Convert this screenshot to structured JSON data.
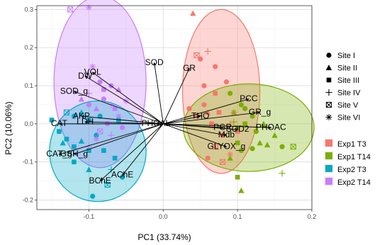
{
  "chart_data": {
    "type": "scatter",
    "title": "",
    "xlabel": "PC1 (33.74%)",
    "ylabel": "PC2 (10.06%)",
    "xlim": [
      -0.17,
      0.2
    ],
    "ylim": [
      -0.225,
      0.31
    ],
    "x_ticks": [
      -0.1,
      0.0,
      0.1,
      0.2
    ],
    "x_tick_labels": [
      "-0.1",
      "0.0",
      "0.1",
      "0.2"
    ],
    "y_ticks": [
      -0.2,
      -0.1,
      0.0,
      0.1,
      0.2,
      0.3
    ],
    "y_tick_labels": [
      "-0.2",
      "-0.1",
      "0.0",
      "0.1",
      "0.2",
      "0.3"
    ],
    "grid": true,
    "legend_position": "right",
    "shape_legend": [
      {
        "label": "Site I",
        "shape": "circle"
      },
      {
        "label": "Site II",
        "shape": "triangle"
      },
      {
        "label": "Site III",
        "shape": "square"
      },
      {
        "label": "Site IV",
        "shape": "plus"
      },
      {
        "label": "Site V",
        "shape": "boxx"
      },
      {
        "label": "Site VI",
        "shape": "star"
      }
    ],
    "color_legend": [
      {
        "label": "Exp1 T3",
        "color": "#F8766D"
      },
      {
        "label": "Exp1 T14",
        "color": "#7CAE00"
      },
      {
        "label": "Exp2 T3",
        "color": "#00A9C5"
      },
      {
        "label": "Exp2 T14",
        "color": "#C77CFF"
      }
    ],
    "ellipses": [
      {
        "group": "Exp2 T14",
        "cx": -0.085,
        "cy": 0.11,
        "rx": 0.062,
        "ry": 0.225,
        "angle_deg": 0
      },
      {
        "group": "Exp2 T3",
        "cx": -0.088,
        "cy": -0.072,
        "rx": 0.065,
        "ry": 0.132,
        "angle_deg": 0
      },
      {
        "group": "Exp1 T3",
        "cx": 0.078,
        "cy": 0.085,
        "rx": 0.052,
        "ry": 0.215,
        "angle_deg": 0
      },
      {
        "group": "Exp1 T14",
        "cx": 0.115,
        "cy": -0.01,
        "rx": 0.088,
        "ry": 0.115,
        "angle_deg": 0
      }
    ],
    "loadings": [
      {
        "label": "SOD",
        "x": -0.012,
        "y": 0.16
      },
      {
        "label": "GR",
        "x": 0.035,
        "y": 0.145
      },
      {
        "label": "VOL",
        "x": -0.095,
        "y": 0.135
      },
      {
        "label": "DW",
        "x": -0.105,
        "y": 0.125
      },
      {
        "label": "SOD_g",
        "x": -0.12,
        "y": 0.085
      },
      {
        "label": "CAT",
        "x": -0.14,
        "y": 0.0
      },
      {
        "label": "AKP",
        "x": -0.11,
        "y": 0.02
      },
      {
        "label": "LDH",
        "x": -0.105,
        "y": 0.005
      },
      {
        "label": "CAT_g",
        "x": -0.14,
        "y": -0.08
      },
      {
        "label": "GSH_g",
        "x": -0.12,
        "y": -0.08
      },
      {
        "label": "AChE",
        "x": -0.055,
        "y": -0.135
      },
      {
        "label": "BChE",
        "x": -0.085,
        "y": -0.15
      },
      {
        "label": "PHOAL",
        "x": -0.01,
        "y": 0.0
      },
      {
        "label": "THO",
        "x": 0.05,
        "y": 0.02
      },
      {
        "label": "PCC",
        "x": 0.115,
        "y": 0.065
      },
      {
        "label": "GR_g",
        "x": 0.13,
        "y": 0.03
      },
      {
        "label": "PHOAC",
        "x": 0.145,
        "y": -0.01
      },
      {
        "label": "PGR",
        "x": 0.08,
        "y": -0.01
      },
      {
        "label": "SOD2",
        "x": 0.1,
        "y": -0.015
      },
      {
        "label": "Mdb",
        "x": 0.085,
        "y": -0.03
      },
      {
        "label": "GLYOX_g",
        "x": 0.085,
        "y": -0.06
      }
    ],
    "series": [
      {
        "name": "Exp1 T3",
        "points": [
          [
            0.04,
            0.29,
            "triangle"
          ],
          [
            0.06,
            0.19,
            "plus"
          ],
          [
            0.045,
            0.18,
            "boxx"
          ],
          [
            0.05,
            0.17,
            "circle"
          ],
          [
            0.07,
            0.15,
            "circle"
          ],
          [
            0.055,
            0.1,
            "circle"
          ],
          [
            0.07,
            0.08,
            "square"
          ],
          [
            0.055,
            0.05,
            "circle"
          ],
          [
            0.035,
            0.04,
            "circle"
          ],
          [
            0.075,
            0.03,
            "square"
          ],
          [
            0.06,
            0.03,
            "triangle"
          ],
          [
            0.045,
            0.02,
            "circle"
          ],
          [
            0.09,
            0.0,
            "plus"
          ],
          [
            0.1,
            -0.02,
            "square"
          ],
          [
            0.08,
            -0.03,
            "circle"
          ],
          [
            0.07,
            -0.06,
            "boxx"
          ],
          [
            0.06,
            -0.09,
            "circle"
          ],
          [
            0.08,
            -0.1,
            "boxx"
          ],
          [
            0.09,
            -0.08,
            "star"
          ],
          [
            0.095,
            0.03,
            "triangle"
          ],
          [
            0.065,
            0.0,
            "square"
          ],
          [
            0.085,
            0.11,
            "circle"
          ]
        ]
      },
      {
        "name": "Exp1 T14",
        "points": [
          [
            0.09,
            0.08,
            "circle"
          ],
          [
            0.105,
            0.05,
            "circle"
          ],
          [
            0.095,
            0.03,
            "star"
          ],
          [
            0.12,
            0.02,
            "circle"
          ],
          [
            0.11,
            0.0,
            "square"
          ],
          [
            0.135,
            0.0,
            "triangle"
          ],
          [
            0.1,
            -0.01,
            "circle"
          ],
          [
            0.125,
            -0.02,
            "circle"
          ],
          [
            0.15,
            -0.03,
            "triangle"
          ],
          [
            0.16,
            -0.06,
            "circle"
          ],
          [
            0.14,
            -0.055,
            "triangle"
          ],
          [
            0.13,
            -0.05,
            "triangle"
          ],
          [
            0.105,
            -0.07,
            "circle"
          ],
          [
            0.1,
            -0.05,
            "square"
          ],
          [
            0.12,
            -0.065,
            "circle"
          ],
          [
            0.175,
            -0.06,
            "boxx"
          ],
          [
            0.16,
            -0.13,
            "plus"
          ],
          [
            0.1,
            -0.14,
            "square"
          ],
          [
            0.105,
            -0.175,
            "triangle"
          ],
          [
            0.09,
            -0.09,
            "triangle"
          ],
          [
            0.095,
            0.005,
            "plus"
          ],
          [
            0.11,
            0.04,
            "circle"
          ]
        ]
      },
      {
        "name": "Exp2 T3",
        "points": [
          [
            -0.15,
            0.01,
            "square"
          ],
          [
            -0.13,
            0.03,
            "boxx"
          ],
          [
            -0.12,
            0.02,
            "circle"
          ],
          [
            -0.11,
            0.03,
            "triangle"
          ],
          [
            -0.1,
            0.01,
            "square"
          ],
          [
            -0.14,
            -0.02,
            "square"
          ],
          [
            -0.13,
            -0.04,
            "square"
          ],
          [
            -0.12,
            -0.06,
            "square"
          ],
          [
            -0.11,
            -0.045,
            "triangle"
          ],
          [
            -0.09,
            -0.03,
            "circle"
          ],
          [
            -0.08,
            -0.07,
            "square"
          ],
          [
            -0.1,
            -0.07,
            "square"
          ],
          [
            -0.12,
            -0.1,
            "square"
          ],
          [
            -0.1,
            -0.12,
            "triangle"
          ],
          [
            -0.07,
            -0.12,
            "plus"
          ],
          [
            -0.055,
            -0.14,
            "circle"
          ],
          [
            -0.075,
            -0.16,
            "boxx"
          ],
          [
            -0.095,
            -0.19,
            "circle"
          ],
          [
            -0.135,
            -0.05,
            "triangle"
          ],
          [
            -0.085,
            0.02,
            "circle"
          ],
          [
            -0.065,
            -0.09,
            "square"
          ],
          [
            -0.06,
            0.01,
            "square"
          ]
        ]
      },
      {
        "name": "Exp2 T14",
        "points": [
          [
            -0.125,
            0.3,
            "boxx"
          ],
          [
            -0.1,
            0.305,
            "star"
          ],
          [
            -0.095,
            0.15,
            "star"
          ],
          [
            -0.085,
            0.11,
            "circle"
          ],
          [
            -0.07,
            0.1,
            "circle"
          ],
          [
            -0.06,
            0.09,
            "triangle"
          ],
          [
            -0.1,
            0.08,
            "plus"
          ],
          [
            -0.05,
            0.06,
            "star"
          ],
          [
            -0.07,
            0.05,
            "plus"
          ],
          [
            -0.08,
            0.065,
            "circle"
          ],
          [
            -0.09,
            0.04,
            "triangle"
          ],
          [
            -0.06,
            0.02,
            "star"
          ],
          [
            -0.075,
            0.0,
            "circle"
          ],
          [
            -0.085,
            -0.02,
            "boxx"
          ],
          [
            -0.09,
            -0.04,
            "star"
          ],
          [
            -0.1,
            -0.06,
            "plus"
          ],
          [
            -0.07,
            -0.03,
            "plus"
          ],
          [
            -0.1,
            0.05,
            "circle"
          ],
          [
            -0.055,
            -0.01,
            "circle"
          ],
          [
            -0.11,
            0.065,
            "triangle"
          ],
          [
            -0.08,
            0.09,
            "square"
          ],
          [
            -0.065,
            0.04,
            "square"
          ]
        ]
      }
    ]
  }
}
